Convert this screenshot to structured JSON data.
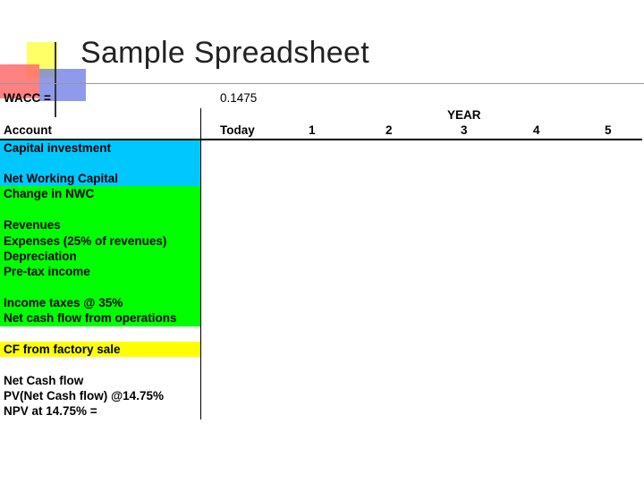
{
  "slide": {
    "title": "Sample Spreadsheet"
  },
  "colors": {
    "cyan": "#00c8ff",
    "green": "#00ff00",
    "yellow": "#ffff00"
  },
  "wacc": {
    "label": "WACC =",
    "value": "0.1475"
  },
  "header": {
    "account": "Account",
    "year_label": "YEAR",
    "columns": [
      "Today",
      "1",
      "2",
      "3",
      "4",
      "5"
    ]
  },
  "rows": {
    "capital_investment": "Capital investment",
    "net_working_capital": "Net Working Capital",
    "change_in_nwc": "Change in NWC",
    "revenues": "Revenues",
    "expenses": "Expenses (25% of revenues)",
    "depreciation": "Depreciation",
    "pretax_income": "Pre-tax income",
    "income_taxes": "Income taxes @ 35%",
    "net_cf_operations": "Net cash flow from operations",
    "cf_factory_sale": "CF from factory sale",
    "net_cash_flow": "Net Cash flow",
    "pv_net_cash_flow": "PV(Net Cash flow) @14.75%",
    "npv": "NPV at 14.75% ="
  }
}
